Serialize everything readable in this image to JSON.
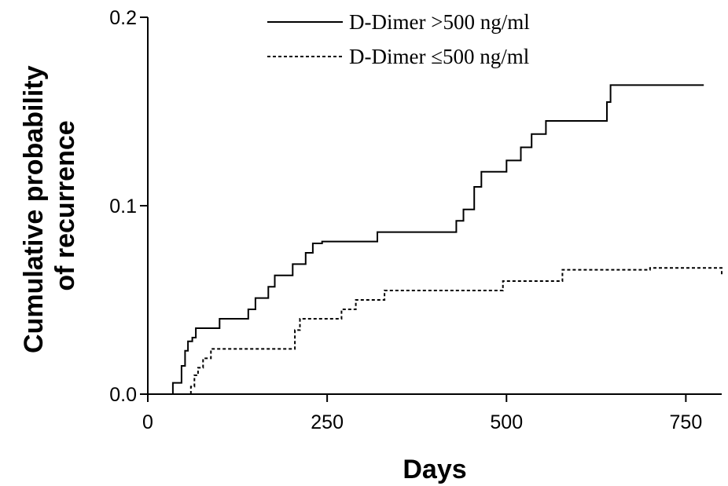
{
  "chart_data": {
    "type": "line",
    "subtype": "kaplan-meier-step",
    "xlabel": "Days",
    "ylabel_lines": [
      "Cumulative probability",
      "of recurrence"
    ],
    "xlim": [
      0,
      800
    ],
    "ylim": [
      0,
      0.2
    ],
    "x_ticks": [
      0,
      250,
      500,
      750
    ],
    "x_tick_labels": [
      "0",
      "250",
      "500",
      "750"
    ],
    "y_ticks": [
      0,
      0.1,
      0.2
    ],
    "y_tick_labels": [
      "0.0",
      "0.1",
      "0.2"
    ],
    "grid": false,
    "legend_position": "top-center",
    "series": [
      {
        "name": "D-Dimer >500 ng/ml",
        "style": "solid",
        "color": "#000000",
        "x": [
          35,
          47,
          52,
          56,
          62,
          67,
          70,
          100,
          140,
          150,
          168,
          177,
          202,
          220,
          230,
          243,
          250,
          320,
          340,
          430,
          440,
          455,
          465,
          480,
          500,
          520,
          535,
          555,
          580,
          600,
          640,
          645,
          660,
          775
        ],
        "y": [
          0.006,
          0.015,
          0.023,
          0.028,
          0.03,
          0.035,
          0.035,
          0.04,
          0.045,
          0.051,
          0.057,
          0.063,
          0.069,
          0.075,
          0.08,
          0.081,
          0.081,
          0.086,
          0.086,
          0.092,
          0.098,
          0.11,
          0.118,
          0.118,
          0.124,
          0.131,
          0.138,
          0.145,
          0.145,
          0.145,
          0.155,
          0.164,
          0.164,
          0.164
        ]
      },
      {
        "name": "D-Dimer ≤500 ng/ml",
        "style": "dashed",
        "color": "#000000",
        "x": [
          60,
          65,
          70,
          77,
          88,
          100,
          110,
          150,
          205,
          212,
          230,
          270,
          290,
          330,
          360,
          400,
          495,
          540,
          578,
          620,
          700,
          800
        ],
        "y": [
          0.004,
          0.01,
          0.014,
          0.019,
          0.024,
          0.024,
          0.024,
          0.024,
          0.034,
          0.04,
          0.04,
          0.045,
          0.05,
          0.055,
          0.055,
          0.055,
          0.06,
          0.06,
          0.066,
          0.066,
          0.067,
          0.063
        ]
      }
    ]
  }
}
